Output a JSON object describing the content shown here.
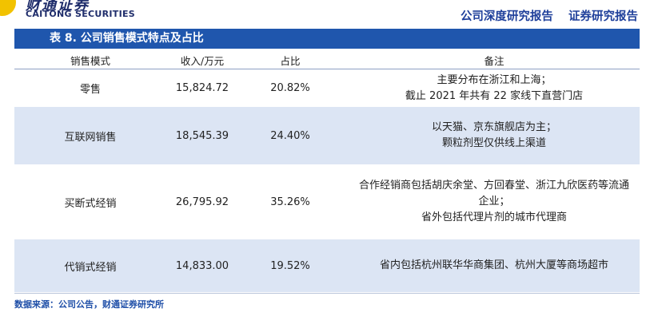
{
  "header": {
    "logo_cn": "财通证券",
    "logo_en": "CAITONG SECURITIES",
    "report_type_1": "公司深度研究报告",
    "report_type_2": "证券研究报告"
  },
  "table": {
    "title": "表 8. 公司销售模式特点及占比",
    "columns": [
      "销售模式",
      "收入/万元",
      "占比",
      "备注"
    ],
    "rows": [
      {
        "mode": "零售",
        "revenue": "15,824.72",
        "share": "20.82%",
        "notes": [
          "主要分布在浙江和上海；",
          "截止 2021 年共有 22 家线下直营门店"
        ]
      },
      {
        "mode": "互联网销售",
        "revenue": "18,545.39",
        "share": "24.40%",
        "notes": [
          "以天猫、京东旗舰店为主；",
          "颗粒剂型仅供线上渠道"
        ]
      },
      {
        "mode": "买断式经销",
        "revenue": "26,795.92",
        "share": "35.26%",
        "notes": [
          "合作经销商包括胡庆余堂、方回春堂、浙江九欣医药等流通",
          "企业；",
          "省外包括代理片剂的城市代理商"
        ]
      },
      {
        "mode": "代销式经销",
        "revenue": "14,833.00",
        "share": "19.52%",
        "notes": [
          "省内包括杭州联华华商集团、杭州大厦等商场超市"
        ]
      }
    ]
  },
  "source": "数据来源：公司公告，财通证券研究所",
  "colors": {
    "title_bar": "#1f56ad",
    "row_shade": "#dce5f4",
    "accent_text": "#1e3f9a"
  }
}
